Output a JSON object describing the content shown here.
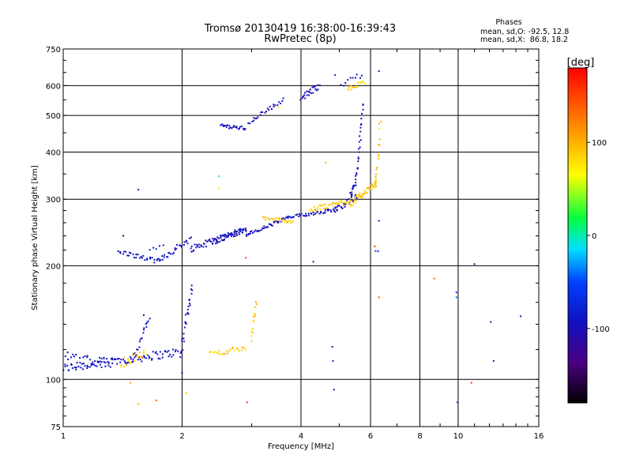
{
  "chart_data": {
    "type": "scatter",
    "title": "Tromsø 20130419 16:38:00-16:39:43",
    "subtitle": "RwPretec (8p)",
    "xlabel": "Frequency [MHz]",
    "ylabel": "Stationary phase Virtual Height [km]",
    "x_scale": "log",
    "y_scale": "log",
    "xlim": [
      1,
      16
    ],
    "ylim": [
      75,
      750
    ],
    "x_ticks": [
      1,
      2,
      4,
      6,
      8,
      10,
      16
    ],
    "x_tick_labels": [
      "1",
      "2",
      "4",
      "6",
      "8",
      "10",
      "16"
    ],
    "y_ticks": [
      75,
      100,
      200,
      300,
      400,
      500,
      600,
      750
    ],
    "y_tick_labels": [
      "75",
      "100",
      "200",
      "300",
      "400",
      "500",
      "600",
      "750"
    ],
    "grid": true,
    "stats": {
      "heading": "Phases",
      "line_o": "mean, sd,O: -92.5, 12.8",
      "line_x": "mean, sd,X:  86.8, 18.2"
    },
    "colorbar": {
      "label": "[deg]",
      "range": [
        -180,
        180
      ],
      "ticks": [
        100,
        0,
        -100
      ],
      "tick_labels": [
        "100",
        "0",
        "-100"
      ],
      "placement": "right"
    },
    "series": [
      {
        "phase": -95,
        "segments": [
          {
            "x0": 1.0,
            "x1": 1.95,
            "n": 95,
            "h0": 107,
            "h1": 118,
            "jit": 3
          },
          {
            "x0": 1.0,
            "x1": 1.35,
            "n": 30,
            "h0": 116,
            "h1": 110,
            "jit": 4
          },
          {
            "x0": 1.5,
            "x1": 1.65,
            "n": 20,
            "h0": 112,
            "h1": 145,
            "jit": 3
          },
          {
            "x0": 1.98,
            "x1": 2.12,
            "n": 28,
            "h0": 112,
            "h1": 175,
            "jit": 4
          },
          {
            "x0": 1.38,
            "x1": 1.75,
            "n": 30,
            "h0": 218,
            "h1": 205,
            "jit": 3
          },
          {
            "x0": 1.75,
            "x1": 2.1,
            "n": 28,
            "h0": 207,
            "h1": 235,
            "jit": 4
          },
          {
            "x0": 2.1,
            "x1": 2.9,
            "n": 60,
            "h0": 222,
            "h1": 248,
            "jit": 5
          },
          {
            "x0": 2.4,
            "x1": 2.9,
            "n": 35,
            "h0": 232,
            "h1": 252,
            "jit": 4
          },
          {
            "x0": 2.9,
            "x1": 3.7,
            "n": 40,
            "h0": 240,
            "h1": 268,
            "jit": 3
          },
          {
            "x0": 3.7,
            "x1": 4.9,
            "n": 45,
            "h0": 268,
            "h1": 282,
            "jit": 3
          },
          {
            "x0": 4.9,
            "x1": 5.55,
            "n": 30,
            "h0": 282,
            "h1": 305,
            "jit": 5
          },
          {
            "x0": 5.35,
            "x1": 5.75,
            "n": 40,
            "h0": 310,
            "h1": 540,
            "jit": 6
          },
          {
            "x0": 2.5,
            "x1": 2.9,
            "n": 25,
            "h0": 470,
            "h1": 462,
            "jit": 5
          },
          {
            "x0": 2.95,
            "x1": 3.6,
            "n": 25,
            "h0": 478,
            "h1": 550,
            "jit": 6
          },
          {
            "x0": 4.0,
            "x1": 4.45,
            "n": 25,
            "h0": 555,
            "h1": 600,
            "jit": 12
          },
          {
            "x0": 5.05,
            "x1": 5.7,
            "n": 10,
            "h0": 605,
            "h1": 640,
            "jit": 10
          }
        ]
      },
      {
        "phase": 90,
        "segments": [
          {
            "x0": 2.35,
            "x1": 2.9,
            "n": 25,
            "h0": 117,
            "h1": 121,
            "jit": 2
          },
          {
            "x0": 3.0,
            "x1": 3.08,
            "n": 15,
            "h0": 128,
            "h1": 160,
            "jit": 3
          },
          {
            "x0": 3.2,
            "x1": 3.8,
            "n": 25,
            "h0": 268,
            "h1": 262,
            "jit": 3
          },
          {
            "x0": 4.2,
            "x1": 5.35,
            "n": 40,
            "h0": 280,
            "h1": 298,
            "jit": 5
          },
          {
            "x0": 5.35,
            "x1": 6.2,
            "n": 45,
            "h0": 292,
            "h1": 330,
            "jit": 6
          },
          {
            "x0": 6.15,
            "x1": 6.35,
            "n": 20,
            "h0": 330,
            "h1": 490,
            "jit": 8
          },
          {
            "x0": 5.25,
            "x1": 5.8,
            "n": 18,
            "h0": 585,
            "h1": 615,
            "jit": 8
          },
          {
            "x0": 1.4,
            "x1": 1.62,
            "n": 20,
            "h0": 110,
            "h1": 118,
            "jit": 3
          }
        ]
      },
      {
        "phase": -70,
        "segments": [
          {
            "x0": 1.65,
            "x1": 1.8,
            "n": 5,
            "h0": 220,
            "h1": 225,
            "jit": 2
          },
          {
            "x0": 6.2,
            "x1": 6.3,
            "n": 2,
            "h0": 218,
            "h1": 218,
            "jit": 1
          }
        ]
      }
    ],
    "outliers": [
      {
        "x": 1.42,
        "y": 240,
        "phase": -160
      },
      {
        "x": 1.55,
        "y": 318,
        "phase": -100
      },
      {
        "x": 1.6,
        "y": 148,
        "phase": -110
      },
      {
        "x": 1.48,
        "y": 98,
        "phase": 110
      },
      {
        "x": 1.55,
        "y": 86,
        "phase": 95
      },
      {
        "x": 1.72,
        "y": 88,
        "phase": 140
      },
      {
        "x": 2.05,
        "y": 92,
        "phase": 90
      },
      {
        "x": 2.0,
        "y": 104,
        "phase": -100
      },
      {
        "x": 2.48,
        "y": 345,
        "phase": -10
      },
      {
        "x": 2.48,
        "y": 320,
        "phase": 80
      },
      {
        "x": 2.9,
        "y": 210,
        "phase": 150
      },
      {
        "x": 2.92,
        "y": 87,
        "phase": 160
      },
      {
        "x": 3.5,
        "y": 525,
        "phase": 70
      },
      {
        "x": 4.3,
        "y": 205,
        "phase": -110
      },
      {
        "x": 4.8,
        "y": 122,
        "phase": -110
      },
      {
        "x": 4.82,
        "y": 112,
        "phase": -100
      },
      {
        "x": 4.85,
        "y": 94,
        "phase": -120
      },
      {
        "x": 4.62,
        "y": 375,
        "phase": 100
      },
      {
        "x": 4.88,
        "y": 640,
        "phase": -100
      },
      {
        "x": 6.3,
        "y": 655,
        "phase": -110
      },
      {
        "x": 6.3,
        "y": 165,
        "phase": 140
      },
      {
        "x": 6.3,
        "y": 263,
        "phase": -100
      },
      {
        "x": 6.15,
        "y": 225,
        "phase": 160
      },
      {
        "x": 8.7,
        "y": 185,
        "phase": 140
      },
      {
        "x": 9.9,
        "y": 170,
        "phase": -60
      },
      {
        "x": 9.9,
        "y": 165,
        "phase": -40
      },
      {
        "x": 9.95,
        "y": 87,
        "phase": -50
      },
      {
        "x": 10.8,
        "y": 98,
        "phase": 150
      },
      {
        "x": 11.0,
        "y": 202,
        "phase": -110
      },
      {
        "x": 12.1,
        "y": 142,
        "phase": -120
      },
      {
        "x": 12.3,
        "y": 112,
        "phase": -130
      },
      {
        "x": 14.4,
        "y": 147,
        "phase": -100
      }
    ]
  }
}
